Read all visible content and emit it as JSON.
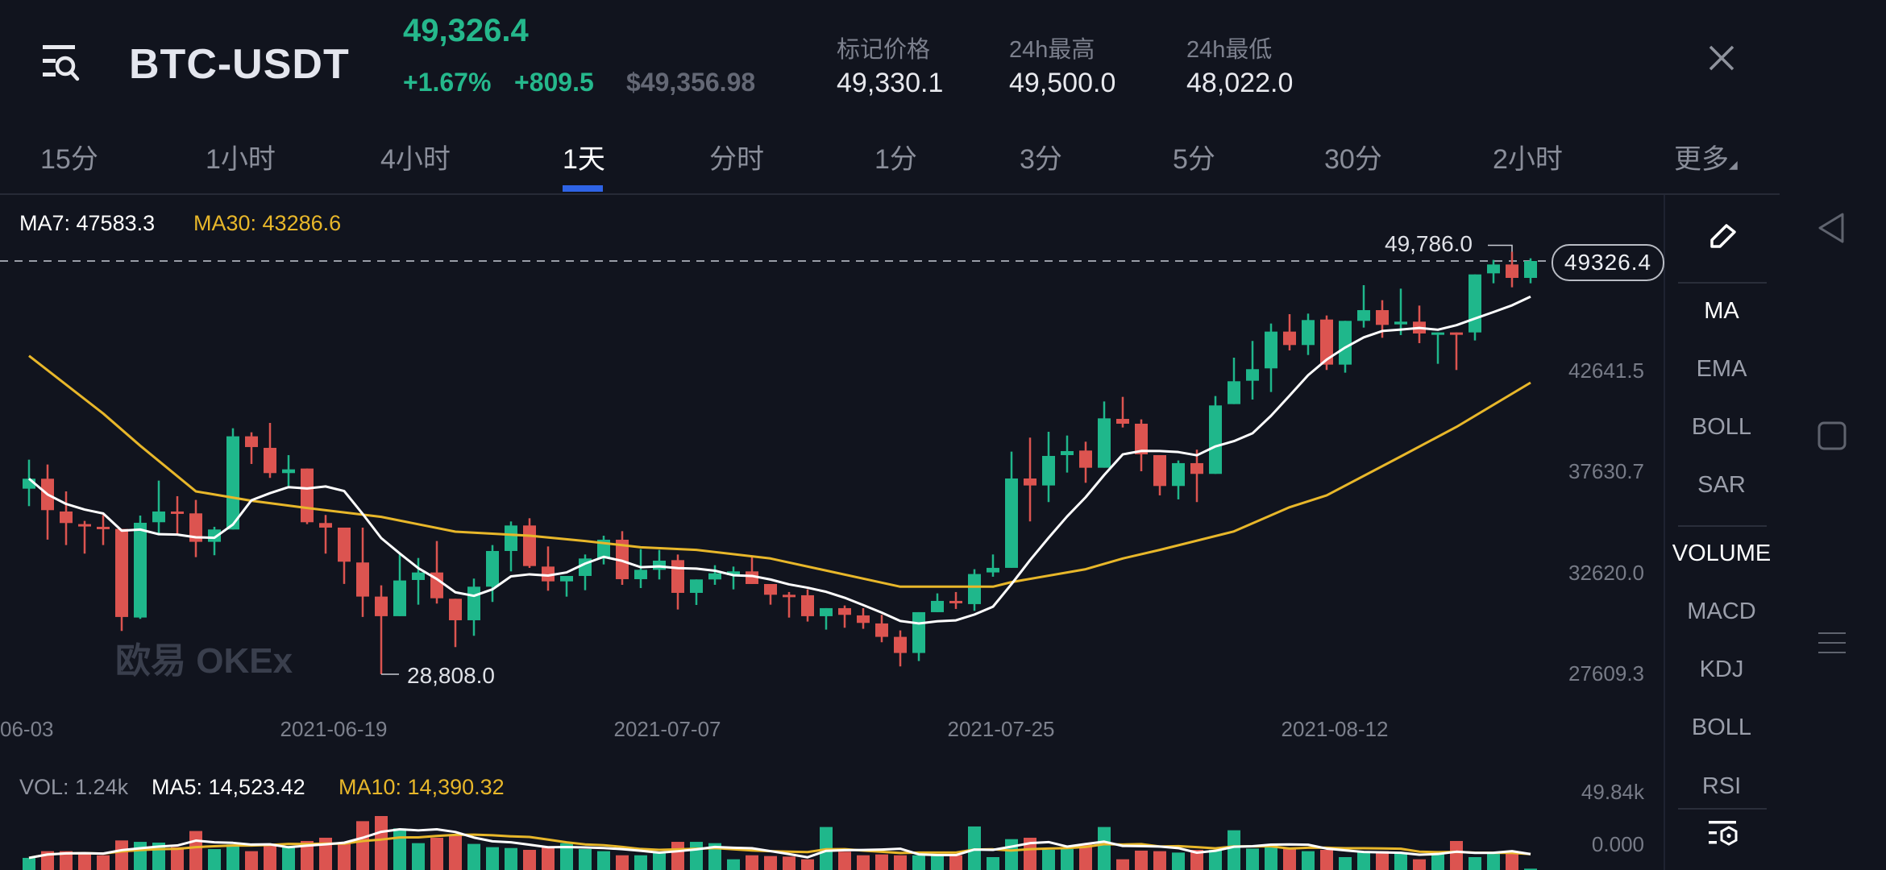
{
  "header": {
    "pair": "BTC-USDT",
    "last_price": "49,326.4",
    "change_pct": "+1.67%",
    "change_abs": "+809.5",
    "usd_price": "$49,356.98",
    "stats": [
      {
        "label": "标记价格",
        "value": "49,330.1"
      },
      {
        "label": "24h最高",
        "value": "49,500.0"
      },
      {
        "label": "24h最低",
        "value": "48,022.0"
      }
    ],
    "icons": {
      "menu": "menu-search-icon",
      "close": "close-icon"
    }
  },
  "tabs": {
    "items": [
      "15分",
      "1小时",
      "4小时",
      "1天",
      "分时",
      "1分",
      "3分",
      "5分",
      "30分",
      "2小时",
      "更多"
    ],
    "active": "1天"
  },
  "legend": {
    "ma7": "MA7: 47583.3",
    "ma30": "MA30: 43286.6",
    "vol": "VOL: 1.24k",
    "vol_ma5": "MA5: 14,523.42",
    "vol_ma10": "MA10: 14,390.32"
  },
  "watermark": "欧易 OKEx",
  "side_panel": {
    "main_indicators": [
      "MA",
      "EMA",
      "BOLL",
      "SAR"
    ],
    "sub_indicators": [
      "VOLUME",
      "MACD",
      "KDJ",
      "BOLL",
      "RSI"
    ],
    "active_main": "MA",
    "active_sub": "VOLUME",
    "icons": {
      "draw": "pencil-icon",
      "settings": "indicator-settings-icon"
    }
  },
  "nav_bar": {
    "icons": [
      "back-triangle-icon",
      "home-square-icon",
      "recents-menu-icon"
    ]
  },
  "colors": {
    "up": "#1fb78b",
    "down": "#dc5450",
    "ma7": "#ffffff",
    "ma30": "#e8b72a",
    "accent": "#2e63e6",
    "background": "#11141e"
  },
  "chart_data": {
    "type": "candlestick",
    "interval": "1天",
    "current_price": 49326.4,
    "current_price_label": "49326.4",
    "high_marker": {
      "label": "49,786.0",
      "value": 49786.0,
      "date": "2021-08-22"
    },
    "low_marker": {
      "label": "28,808.0",
      "value": 28808.0,
      "date": "2021-06-22"
    },
    "price_axis": {
      "ticks": [
        {
          "label": "42641.5",
          "value": 42641.5
        },
        {
          "label": "37630.7",
          "value": 37630.7
        },
        {
          "label": "32620.0",
          "value": 32620.0
        },
        {
          "label": "27609.3",
          "value": 27609.3
        }
      ]
    },
    "volume_axis": {
      "ticks": [
        {
          "label": "49.84k",
          "value": 49.84
        },
        {
          "label": "0.000",
          "value": 0
        }
      ],
      "unit": "k"
    },
    "date_axis": [
      {
        "label": "06-03",
        "date": "2021-06-03"
      },
      {
        "label": "2021-06-19",
        "date": "2021-06-19"
      },
      {
        "label": "2021-07-07",
        "date": "2021-07-07"
      },
      {
        "label": "2021-07-25",
        "date": "2021-07-25"
      },
      {
        "label": "2021-08-12",
        "date": "2021-08-12"
      }
    ],
    "columns": [
      "date",
      "open",
      "high",
      "low",
      "close",
      "volume_k"
    ],
    "rows": [
      [
        "2021-06-03",
        38021,
        39461,
        37155,
        38515,
        11.2
      ],
      [
        "2021-06-04",
        38515,
        39221,
        35489,
        36955,
        17.4
      ],
      [
        "2021-06-05",
        36888,
        37888,
        35222,
        36315,
        17.4
      ],
      [
        "2021-06-06",
        36262,
        36421,
        34796,
        36155,
        16.1
      ],
      [
        "2021-06-07",
        36128,
        36715,
        35222,
        36022,
        13.6
      ],
      [
        "2021-06-08",
        36022,
        36022,
        30956,
        31650,
        27.3
      ],
      [
        "2021-06-09",
        31623,
        36688,
        31556,
        36328,
        26.0
      ],
      [
        "2021-06-10",
        36355,
        38421,
        35755,
        36888,
        25.3
      ],
      [
        "2021-06-11",
        36888,
        37648,
        35755,
        36822,
        21.1
      ],
      [
        "2021-06-12",
        36795,
        37461,
        34622,
        35382,
        36.0
      ],
      [
        "2021-06-13",
        35382,
        36128,
        34716,
        35995,
        19.3
      ],
      [
        "2021-06-14",
        35995,
        41021,
        35995,
        40621,
        23.6
      ],
      [
        "2021-06-15",
        40621,
        40821,
        39248,
        40088,
        17.4
      ],
      [
        "2021-06-16",
        40048,
        41288,
        38555,
        38795,
        22.3
      ],
      [
        "2021-06-17",
        38795,
        39688,
        38155,
        38981,
        22.3
      ],
      [
        "2021-06-18",
        39021,
        39021,
        36262,
        36355,
        26.8
      ],
      [
        "2021-06-19",
        36315,
        36715,
        34796,
        36088,
        29.8
      ],
      [
        "2021-06-20",
        36088,
        36088,
        33290,
        34395,
        24.8
      ],
      [
        "2021-06-21",
        34356,
        36088,
        31650,
        32663,
        45.1
      ],
      [
        "2021-06-22",
        32663,
        33223,
        28808,
        31690,
        49.84
      ],
      [
        "2021-06-23",
        31690,
        34756,
        31690,
        33463,
        38.4
      ],
      [
        "2021-06-24",
        33487,
        34580,
        32261,
        33860,
        24.8
      ],
      [
        "2021-06-25",
        33860,
        35420,
        32314,
        32580,
        29.8
      ],
      [
        "2021-06-26",
        32554,
        32554,
        30155,
        31487,
        32.7
      ],
      [
        "2021-06-27",
        31487,
        33554,
        30714,
        33154,
        24.1
      ],
      [
        "2021-06-28",
        33154,
        35220,
        32394,
        34927,
        21.1
      ],
      [
        "2021-06-29",
        34927,
        36393,
        33914,
        36193,
        20.3
      ],
      [
        "2021-06-30",
        36193,
        36553,
        34087,
        34180,
        18.6
      ],
      [
        "2021-07-01",
        34153,
        35153,
        32954,
        33420,
        21.1
      ],
      [
        "2021-07-02",
        33420,
        33687,
        32660,
        33687,
        24.8
      ],
      [
        "2021-07-03",
        33687,
        34753,
        32980,
        34554,
        19.3
      ],
      [
        "2021-07-04",
        34554,
        35687,
        34260,
        35487,
        17.4
      ],
      [
        "2021-07-05",
        35487,
        35913,
        33247,
        33527,
        13.6
      ],
      [
        "2021-07-06",
        33527,
        35020,
        33087,
        33993,
        13.6
      ],
      [
        "2021-07-07",
        33993,
        34980,
        33513,
        34447,
        16.1
      ],
      [
        "2021-07-08",
        34473,
        34753,
        32021,
        32847,
        26.0
      ],
      [
        "2021-07-09",
        32847,
        33514,
        32247,
        33514,
        26.0
      ],
      [
        "2021-07-10",
        33514,
        34220,
        33247,
        33820,
        24.8
      ],
      [
        "2021-07-11",
        33727,
        34153,
        33020,
        33914,
        9.9
      ],
      [
        "2021-07-12",
        33914,
        34687,
        33287,
        33287,
        13.6
      ],
      [
        "2021-07-13",
        33287,
        33287,
        32261,
        32754,
        12.9
      ],
      [
        "2021-07-14",
        32753,
        32890,
        31620,
        32750,
        12.4
      ],
      [
        "2021-07-15",
        32729,
        33022,
        31423,
        31689,
        9.9
      ],
      [
        "2021-07-16",
        31689,
        32089,
        31023,
        32089,
        39.7
      ],
      [
        "2021-07-17",
        32089,
        32222,
        31116,
        31756,
        16.9
      ],
      [
        "2021-07-18",
        31729,
        32089,
        31063,
        31356,
        13.6
      ],
      [
        "2021-07-19",
        31329,
        31756,
        30396,
        30663,
        14.4
      ],
      [
        "2021-07-20",
        30663,
        30983,
        29196,
        29863,
        13.6
      ],
      [
        "2021-07-21",
        29863,
        31889,
        29463,
        31889,
        13.6
      ],
      [
        "2021-07-22",
        31889,
        32822,
        31889,
        32449,
        13.6
      ],
      [
        "2021-07-23",
        32449,
        32889,
        32049,
        32396,
        13.6
      ],
      [
        "2021-07-24",
        32289,
        34022,
        31956,
        33783,
        40.2
      ],
      [
        "2021-07-25",
        33863,
        34755,
        33649,
        34089,
        11.9
      ],
      [
        "2021-07-26",
        34089,
        39860,
        34089,
        38527,
        28.5
      ],
      [
        "2021-07-27",
        38527,
        40554,
        36395,
        38181,
        29.8
      ],
      [
        "2021-07-28",
        38181,
        40847,
        37354,
        39647,
        18.6
      ],
      [
        "2021-07-29",
        39687,
        40660,
        38821,
        39887,
        19.3
      ],
      [
        "2021-07-30",
        39914,
        40354,
        38314,
        39060,
        23.6
      ],
      [
        "2021-07-31",
        39060,
        42353,
        39060,
        41513,
        39.7
      ],
      [
        "2021-08-01",
        41487,
        42580,
        41060,
        41247,
        9.9
      ],
      [
        "2021-08-02",
        41247,
        41460,
        38888,
        39727,
        17.9
      ],
      [
        "2021-08-03",
        39687,
        39687,
        37688,
        38154,
        17.4
      ],
      [
        "2021-08-04",
        38155,
        39422,
        37489,
        39289,
        16.1
      ],
      [
        "2021-08-05",
        39289,
        39955,
        37356,
        38756,
        18.6
      ],
      [
        "2021-08-06",
        38756,
        42621,
        38756,
        42155,
        18.6
      ],
      [
        "2021-08-07",
        42221,
        44527,
        42221,
        43355,
        36.7
      ],
      [
        "2021-08-08",
        43381,
        45354,
        42448,
        43955,
        19.8
      ],
      [
        "2021-08-09",
        43995,
        46221,
        42821,
        45821,
        23.6
      ],
      [
        "2021-08-10",
        45821,
        46687,
        44887,
        45154,
        19.3
      ],
      [
        "2021-08-11",
        45154,
        46714,
        44660,
        46394,
        17.4
      ],
      [
        "2021-08-12",
        46420,
        46620,
        43914,
        44181,
        18.6
      ],
      [
        "2021-08-13",
        44181,
        46354,
        43781,
        46354,
        11.9
      ],
      [
        "2021-08-14",
        46354,
        48126,
        46020,
        46887,
        16.1
      ],
      [
        "2021-08-15",
        46887,
        47380,
        45514,
        46154,
        17.4
      ],
      [
        "2021-08-16",
        46180,
        47953,
        45647,
        46314,
        15.4
      ],
      [
        "2021-08-17",
        46314,
        47113,
        45247,
        45727,
        9.9
      ],
      [
        "2021-08-18",
        45727,
        45780,
        44221,
        45780,
        14.9
      ],
      [
        "2021-08-19",
        45780,
        45780,
        43914,
        45754,
        26.8
      ],
      [
        "2021-08-20",
        45780,
        48660,
        45381,
        48660,
        11.9
      ],
      [
        "2021-08-21",
        48713,
        49380,
        48220,
        49153,
        16.1
      ],
      [
        "2021-08-22",
        49153,
        49786,
        48020,
        48487,
        17.4
      ],
      [
        "2021-08-23",
        48487,
        49460,
        48220,
        49326.4,
        1.24
      ]
    ],
    "ma30_points": [
      [
        "2021-06-03",
        44620
      ],
      [
        "2021-06-07",
        41754
      ],
      [
        "2021-06-09",
        40154
      ],
      [
        "2021-06-12",
        37888
      ],
      [
        "2021-06-15",
        37422
      ],
      [
        "2021-06-18",
        37062
      ],
      [
        "2021-06-22",
        36622
      ],
      [
        "2021-06-26",
        35886
      ],
      [
        "2021-06-30",
        35686
      ],
      [
        "2021-07-03",
        35420
      ],
      [
        "2021-07-06",
        35113
      ],
      [
        "2021-07-09",
        34980
      ],
      [
        "2021-07-13",
        34555
      ],
      [
        "2021-07-20",
        33155
      ],
      [
        "2021-07-25",
        33155
      ],
      [
        "2021-07-26",
        33382
      ],
      [
        "2021-07-30",
        34022
      ],
      [
        "2021-08-01",
        34555
      ],
      [
        "2021-08-03",
        34982
      ],
      [
        "2021-08-07",
        35900
      ],
      [
        "2021-08-10",
        37100
      ],
      [
        "2021-08-12",
        37690
      ],
      [
        "2021-08-16",
        39622
      ],
      [
        "2021-08-19",
        41087
      ],
      [
        "2021-08-23",
        43286.6
      ]
    ]
  }
}
